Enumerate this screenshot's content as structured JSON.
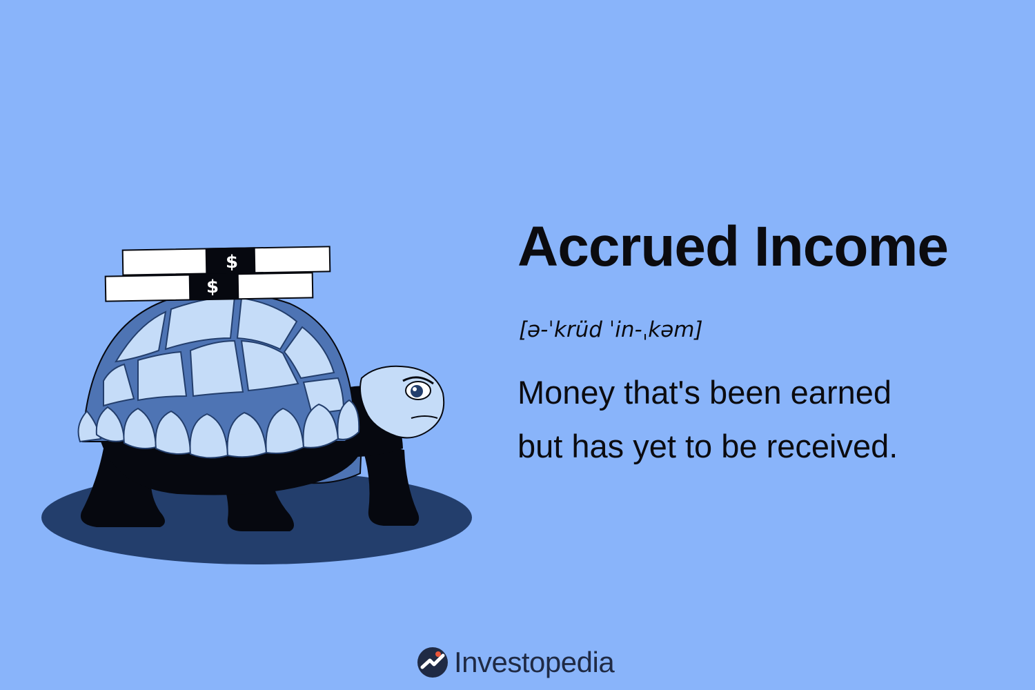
{
  "colors": {
    "background": "#89B4FA",
    "text": "#0B0B0F",
    "brand_text": "#1F2A44",
    "brand_accent": "#E8553A",
    "shadow": "#233E6C",
    "shell_light": "#C5DCF8",
    "shell_seam": "#4E74B4",
    "body_dark": "#06080F"
  },
  "card": {
    "term": "Accrued Income",
    "pronunciation": "[ə-ˈkrüd ˈin-ˌkəm]",
    "definition_lines": [
      "Money that's been earned",
      "but has yet to be received."
    ]
  },
  "illustration": {
    "subject": "turtle-icon",
    "money_bands": [
      {
        "symbol": "$"
      },
      {
        "symbol": "$"
      }
    ]
  },
  "brand": {
    "name": "Investopedia",
    "logo_icon": "investopedia-logo-icon"
  }
}
